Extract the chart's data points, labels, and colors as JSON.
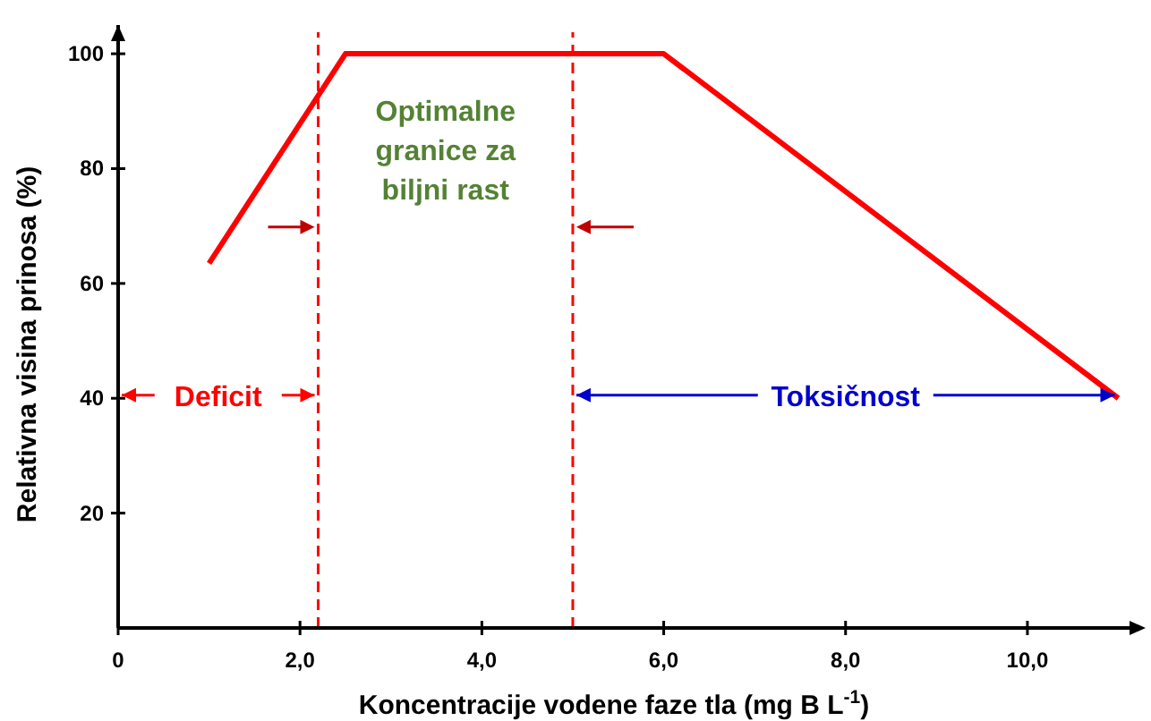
{
  "chart_data": {
    "type": "line",
    "xlabel": "Koncentracije vodene faze tla (mg B L$^{-1}$)",
    "ylabel": "Relativna visina prinosa (%)",
    "xlim": [
      0,
      11.3
    ],
    "ylim": [
      0,
      105
    ],
    "xticks": [
      0,
      {
        "value": 2,
        "label": "2,0"
      },
      {
        "value": 4,
        "label": "4,0"
      },
      {
        "value": 6,
        "label": "6,0"
      },
      {
        "value": 8,
        "label": "8,0"
      },
      {
        "value": 10,
        "label": "10,0"
      }
    ],
    "yticks": [
      20,
      40,
      60,
      80,
      100
    ],
    "grid": false,
    "marker": "none",
    "line_style": "solid",
    "series": [
      {
        "color": "#ff0000",
        "x": [
          1.0,
          2.5,
          6.0,
          11.0
        ],
        "values": [
          63.5,
          100,
          100,
          40
        ]
      }
    ],
    "ref_lines": [
      {
        "axis": "x",
        "value": 2.2,
        "color": "#ff0000",
        "line_style": "dashed"
      },
      {
        "axis": "x",
        "value": 5.0,
        "color": "#ff0000",
        "line_style": "dashed"
      }
    ],
    "annotations": [
      "Deficit",
      "Optimalne granice za biljni rast",
      "Toksičnost"
    ]
  }
}
